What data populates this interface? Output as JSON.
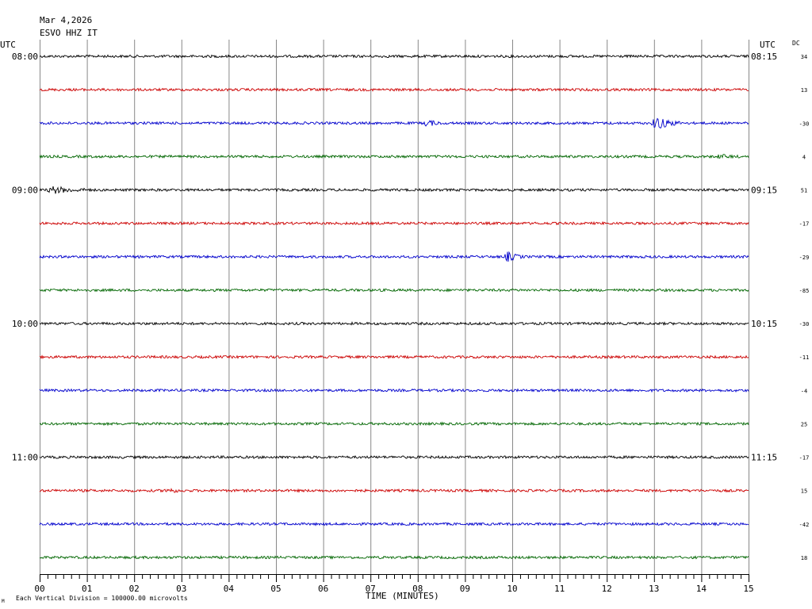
{
  "header": {
    "date": "Mar 4,2026",
    "station": "ESVO HHZ IT",
    "utc_left": "UTC",
    "utc_right": "UTC",
    "dc_label": "DC"
  },
  "footer": {
    "scale_note": "Each Vertical Division = 100000.00 microvolts",
    "corner_mark": "M"
  },
  "chart_data": {
    "type": "line",
    "title": "",
    "xlabel": "TIME (MINUTES)",
    "ylabel": "",
    "xlim": [
      0,
      15
    ],
    "x_ticks": [
      "00",
      "01",
      "02",
      "03",
      "04",
      "05",
      "06",
      "07",
      "08",
      "09",
      "10",
      "11",
      "12",
      "13",
      "14",
      "15"
    ],
    "grid": true,
    "trace_colors": [
      "#000000",
      "#cc0000",
      "#0000cc",
      "#006600"
    ],
    "left_time_labels": [
      {
        "row": 0,
        "label": "08:00"
      },
      {
        "row": 4,
        "label": "09:00"
      },
      {
        "row": 8,
        "label": "10:00"
      },
      {
        "row": 12,
        "label": "11:00"
      }
    ],
    "right_time_labels": [
      {
        "row": 0,
        "label": "08:15"
      },
      {
        "row": 4,
        "label": "09:15"
      },
      {
        "row": 8,
        "label": "10:15"
      },
      {
        "row": 12,
        "label": "11:15"
      }
    ],
    "dc_offsets": [
      "34",
      "13",
      "-30",
      "4",
      "51",
      "-17",
      "-29",
      "-85",
      "-30",
      "-11",
      "-4",
      "25",
      "-17",
      "15",
      "-42",
      "18"
    ],
    "events": [
      {
        "row": 2,
        "minute": 8.2,
        "amplitude": 0.22,
        "duration_min": 0.3
      },
      {
        "row": 2,
        "minute": 13.05,
        "amplitude": 0.4,
        "duration_min": 0.55
      },
      {
        "row": 3,
        "minute": 14.4,
        "amplitude": 0.1,
        "duration_min": 0.4
      },
      {
        "row": 4,
        "minute": 0.3,
        "amplitude": 0.18,
        "duration_min": 0.8
      },
      {
        "row": 6,
        "minute": 9.9,
        "amplitude": 0.28,
        "duration_min": 0.35
      },
      {
        "row": 13,
        "minute": 2.7,
        "amplitude": 0.14,
        "duration_min": 0.35
      }
    ]
  }
}
